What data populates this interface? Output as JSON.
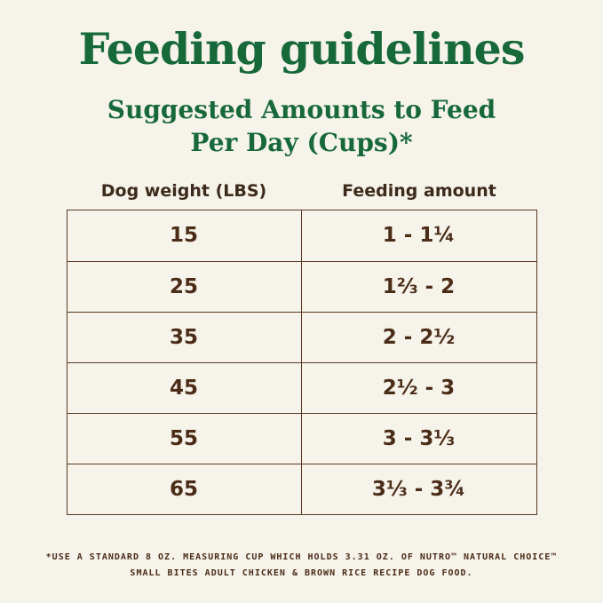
{
  "page": {
    "title": "Feeding guidelines",
    "subtitle_line1": "Suggested Amounts to Feed",
    "subtitle_line2": "Per Day (Cups)*"
  },
  "chart_data": {
    "type": "table",
    "title": "Feeding guidelines",
    "subtitle": "Suggested Amounts to Feed Per Day (Cups)*",
    "columns": [
      "Dog weight (LBS)",
      "Feeding amount"
    ],
    "rows": [
      {
        "weight": "15",
        "amount": "1 - 1¼"
      },
      {
        "weight": "25",
        "amount": "1⅔ - 2"
      },
      {
        "weight": "35",
        "amount": "2 - 2½"
      },
      {
        "weight": "45",
        "amount": "2½ - 3"
      },
      {
        "weight": "55",
        "amount": "3 - 3⅓"
      },
      {
        "weight": "65",
        "amount": "3⅓ - 3¾"
      }
    ],
    "weights_lbs": [
      15,
      25,
      35,
      45,
      55,
      65
    ],
    "amount_ranges_cups": [
      [
        1,
        1.25
      ],
      [
        1.67,
        2
      ],
      [
        2,
        2.5
      ],
      [
        2.5,
        3
      ],
      [
        3,
        3.33
      ],
      [
        3.33,
        3.75
      ]
    ]
  },
  "footnote": {
    "line1": "*USE A STANDARD 8 OZ. MEASURING CUP WHICH HOLDS 3.31 OZ. OF NUTRO™ NATURAL CHOICE™",
    "line2": "SMALL BITES ADULT CHICKEN & BROWN RICE RECIPE DOG FOOD."
  },
  "colors": {
    "background": "#f6f3ea",
    "title_green": "#17693a",
    "text_brown": "#4a2c17",
    "border_brown": "#5a3a22"
  }
}
